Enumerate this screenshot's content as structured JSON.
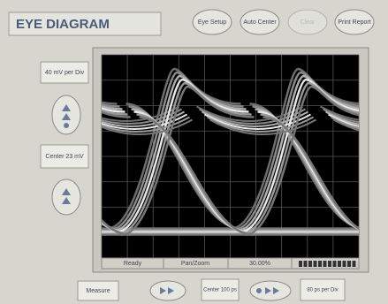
{
  "header": {
    "title": "EYE DIAGRAM"
  },
  "toolbar": {
    "buttons": [
      "Eye Setup",
      "Auto Center",
      "Clear",
      "Print Report"
    ]
  },
  "left_panel": {
    "vertical_scale": "40 mV per Div",
    "vertical_center": "Center 23 mV"
  },
  "status_bar": [
    "Ready",
    "Pan/Zoom",
    "30.00%"
  ],
  "bottom_panel": {
    "measure": "Measure",
    "horizontal_center": "Center 100 ps",
    "horizontal_scale": "80 ps per Div"
  }
}
